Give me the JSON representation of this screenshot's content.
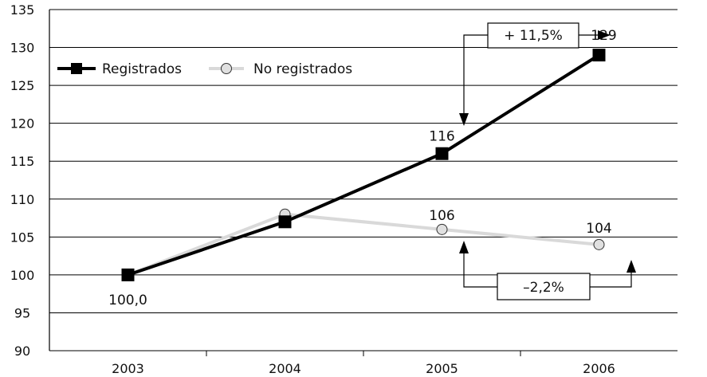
{
  "chart_data": {
    "type": "line",
    "categories": [
      "2003",
      "2004",
      "2005",
      "2006"
    ],
    "ylim": [
      90,
      135
    ],
    "yticks": [
      "90",
      "95",
      "100",
      "105",
      "110",
      "115",
      "120",
      "125",
      "130",
      "135"
    ],
    "grid": true,
    "legend_position": "top-left",
    "series": [
      {
        "name": "Registrados",
        "values": [
          100,
          107,
          116,
          129
        ],
        "color": "#000000",
        "marker": "square"
      },
      {
        "name": "No registrados",
        "values": [
          100,
          108,
          106,
          104
        ],
        "color": "#d9d9d9",
        "marker": "circle"
      }
    ],
    "data_labels": {
      "p2003": "100,0",
      "r2005": "116",
      "r2006": "129",
      "n2005": "106",
      "n2006": "104"
    },
    "annotations": {
      "increase": "+ 11,5%",
      "decrease": "–2,2%"
    }
  }
}
